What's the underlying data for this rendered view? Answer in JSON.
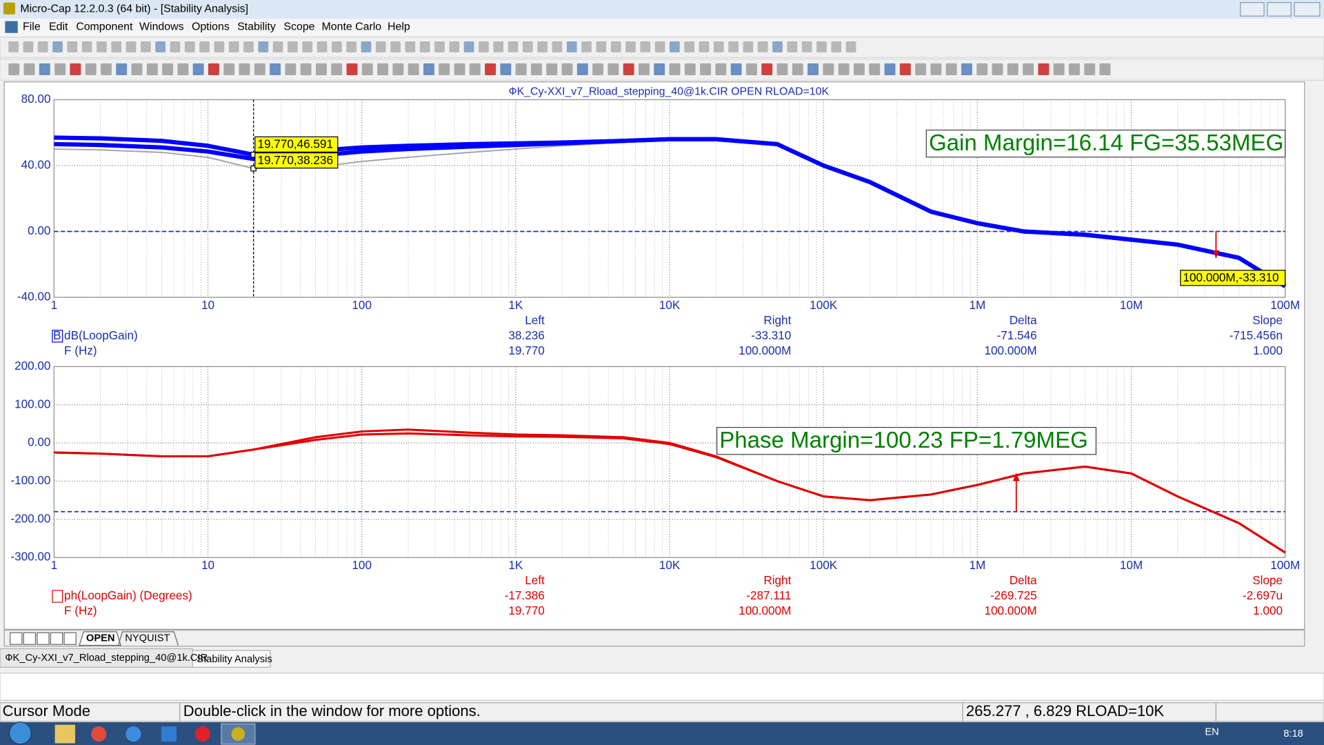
{
  "window": {
    "title": "Micro-Cap 12.2.0.3 (64 bit) - [Stability Analysis]"
  },
  "menu": [
    "File",
    "Edit",
    "Component",
    "Windows",
    "Options",
    "Stability",
    "Scope",
    "Monte Carlo",
    "Help"
  ],
  "plot_title": "ФK_Cy-XXI_v7_Rload_stepping_40@1k.CIR OPEN RLOAD=10K",
  "chart_data": [
    {
      "type": "line",
      "log_x": true,
      "grid": true,
      "x": [
        1,
        2,
        5,
        10,
        19.77,
        50,
        100,
        200,
        500,
        1000,
        2000,
        5000,
        10000,
        20000,
        50000,
        100000,
        200000,
        500000,
        1000000,
        2000000,
        5000000,
        10000000,
        20000000,
        50000000,
        100000000
      ],
      "xlim": [
        1,
        100000000
      ],
      "xticks": [
        1,
        10,
        100,
        {
          "value": 1000,
          "label": "1K"
        },
        {
          "value": 10000,
          "label": "10K"
        },
        {
          "value": 100000,
          "label": "100K"
        },
        {
          "value": 1000000,
          "label": "1M"
        },
        {
          "value": 10000000,
          "label": "10M"
        },
        {
          "value": 100000000,
          "label": "100M"
        }
      ],
      "ylim": [
        -40,
        80
      ],
      "yticks": [
        {
          "value": 80,
          "label": "80.00"
        },
        {
          "value": 40,
          "label": "40.00"
        },
        {
          "value": 0,
          "label": "0.00"
        },
        {
          "value": -40,
          "label": "-40.00"
        }
      ],
      "series": [
        {
          "name": "dB(LoopGain)",
          "color": "#0000ff",
          "values": [
            57,
            56.5,
            55,
            52,
            46.591,
            49,
            51,
            52,
            53,
            53.5,
            54,
            55,
            56,
            56,
            53,
            40,
            30,
            12,
            5,
            0,
            -2,
            -5,
            -8,
            -16,
            -33.31
          ]
        },
        {
          "color": "#0000ff",
          "values": [
            53,
            52.5,
            51,
            48.5,
            44,
            46,
            48.5,
            50,
            51.5,
            52.5,
            53.5,
            55,
            56,
            56,
            53,
            40,
            30,
            12,
            5,
            0,
            -2,
            -5,
            -8,
            -16,
            -33.31
          ]
        },
        {
          "color": "#a0a0a0",
          "values": [
            50,
            49.5,
            48,
            45,
            38.236,
            39,
            42.5,
            45,
            48,
            50,
            52,
            54,
            55.5,
            55.5,
            53,
            40,
            30,
            12,
            5,
            0,
            -2,
            -5,
            -8,
            -16,
            -33.31
          ]
        }
      ],
      "reference_line": 0,
      "cursor_x": 19.77,
      "cursor_labels": [
        "19.770,46.591",
        "19.770,38.236",
        "100.000M,-33.310"
      ],
      "annotation": "Gain Margin=16.14 FG=35.53MEG",
      "margin_arrow": {
        "x": 35530000,
        "from": 0,
        "to": -16.14
      },
      "legend_marker": "B",
      "x_label": "F (Hz)",
      "readout": {
        "headers": [
          "Left",
          "Right",
          "Delta",
          "Slope"
        ],
        "rows": [
          [
            "38.236",
            "-33.310",
            "-71.546",
            "-715.456n"
          ],
          [
            "19.770",
            "100.000M",
            "100.000M",
            "1.000"
          ]
        ]
      }
    },
    {
      "type": "line",
      "log_x": true,
      "grid": true,
      "x": [
        1,
        2,
        5,
        10,
        19.77,
        50,
        100,
        200,
        500,
        1000,
        2000,
        5000,
        10000,
        20000,
        50000,
        100000,
        200000,
        500000,
        1000000,
        2000000,
        5000000,
        10000000,
        20000000,
        50000000,
        100000000
      ],
      "xlim": [
        1,
        100000000
      ],
      "xticks": [
        1,
        10,
        100,
        {
          "value": 1000,
          "label": "1K"
        },
        {
          "value": 10000,
          "label": "10K"
        },
        {
          "value": 100000,
          "label": "100K"
        },
        {
          "value": 1000000,
          "label": "1M"
        },
        {
          "value": 10000000,
          "label": "10M"
        },
        {
          "value": 100000000,
          "label": "100M"
        }
      ],
      "ylim": [
        -300,
        200
      ],
      "yticks": [
        {
          "value": 200,
          "label": "200.00"
        },
        {
          "value": 100,
          "label": "100.00"
        },
        {
          "value": 0,
          "label": "0.00"
        },
        {
          "value": -100,
          "label": "-100.00"
        },
        {
          "value": -200,
          "label": "-200.00"
        },
        {
          "value": -300,
          "label": "-300.00"
        }
      ],
      "series": [
        {
          "name": "ph(LoopGain) (Degrees)",
          "color": "#e00000",
          "values": [
            -25,
            -28,
            -35,
            -35,
            -17.386,
            15,
            30,
            35,
            27,
            22,
            20,
            15,
            0,
            -35,
            -100,
            -140,
            -150,
            -135,
            -110,
            -80,
            -62,
            -80,
            -140,
            -210,
            -287.111
          ]
        },
        {
          "color": "#e00000",
          "values": [
            -25,
            -28,
            -35,
            -35,
            -17.386,
            8,
            22,
            25,
            20,
            17,
            16,
            12,
            -3,
            -37,
            -100,
            -140,
            -150,
            -135,
            -110,
            -80,
            -62,
            -80,
            -140,
            -210,
            -287.111
          ]
        }
      ],
      "reference_line": -180,
      "annotation": "Phase Margin=100.23 FP=1.79MEG",
      "margin_arrow": {
        "x": 1790000,
        "from": -180,
        "to": -79.77
      },
      "x_label": "F (Hz)",
      "readout": {
        "headers": [
          "Left",
          "Right",
          "Delta",
          "Slope"
        ],
        "rows": [
          [
            "-17.386",
            "-287.111",
            "-269.725",
            "-2.697u"
          ],
          [
            "19.770",
            "100.000M",
            "100.000M",
            "1.000"
          ]
        ]
      }
    }
  ],
  "plot_tabs": [
    "OPEN",
    "NYQUIST"
  ],
  "doc_tabs": [
    "ФK_Cy-XXI_v7_Rload_stepping_40@1k.CIR",
    "Stability Analysis"
  ],
  "status": {
    "mode": "Cursor Mode",
    "hint": "Double-click in the window for more options.",
    "coords": "265.277 , 6.829 RLOAD=10K"
  },
  "taskbar": {
    "language": "EN",
    "time": "8:18"
  }
}
